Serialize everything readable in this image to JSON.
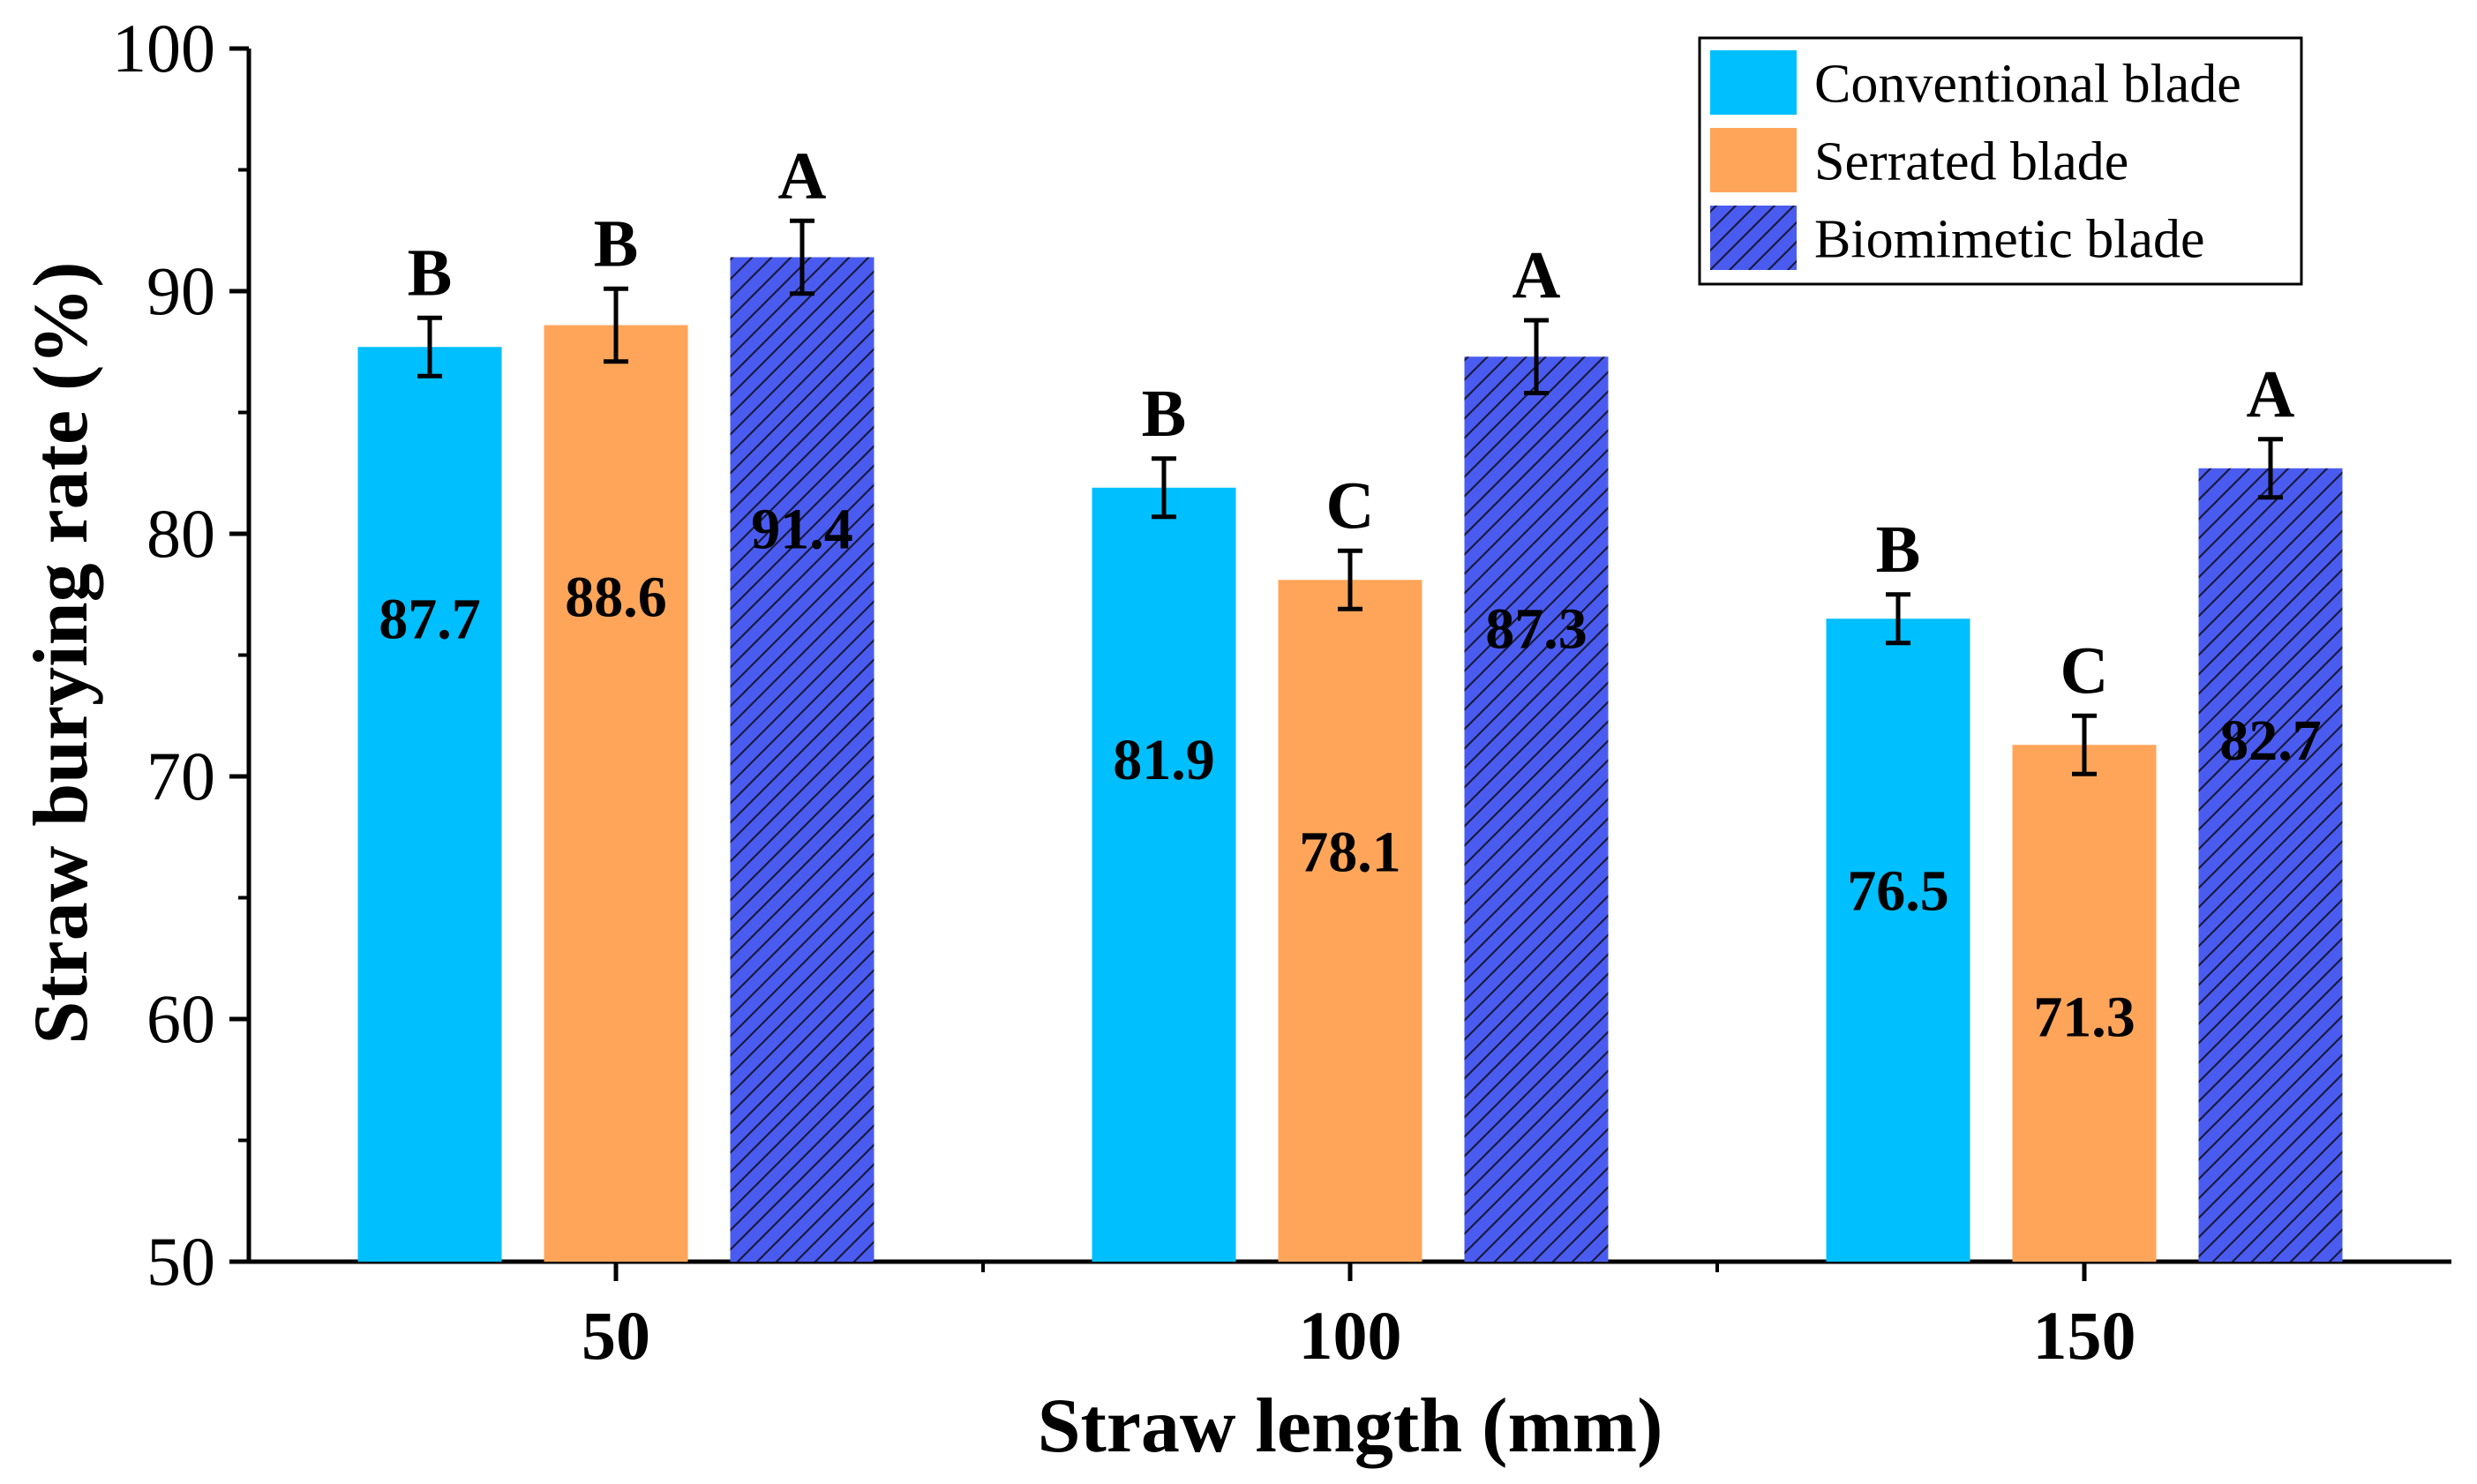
{
  "chart_data": {
    "type": "bar",
    "title": "",
    "xlabel": "Straw length (mm)",
    "ylabel": "Straw burying rate (%)",
    "ylim": [
      50,
      100
    ],
    "yticks": [
      50,
      60,
      70,
      80,
      90,
      100
    ],
    "categories": [
      "50",
      "100",
      "150"
    ],
    "series": [
      {
        "name": "Conventional blade",
        "color": "#00BFFF",
        "pattern": "solid",
        "values": [
          87.7,
          81.9,
          76.5
        ],
        "errors": [
          1.2,
          1.2,
          1.0
        ],
        "value_labels": [
          "87.7",
          "81.9",
          "76.5"
        ],
        "significance": [
          "B",
          "B",
          "B"
        ]
      },
      {
        "name": "Serrated blade",
        "color": "#FFA55A",
        "pattern": "solid",
        "values": [
          88.6,
          78.1,
          71.3
        ],
        "errors": [
          1.5,
          1.2,
          1.2
        ],
        "value_labels": [
          "88.6",
          "78.1",
          "71.3"
        ],
        "significance": [
          "B",
          "C",
          "C"
        ]
      },
      {
        "name": "Biomimetic blade",
        "color": "#4A5CF0",
        "pattern": "hatch",
        "values": [
          91.4,
          87.3,
          82.7
        ],
        "errors": [
          1.5,
          1.5,
          1.2
        ],
        "value_labels": [
          "91.4",
          "87.3",
          "82.7"
        ],
        "significance": [
          "A",
          "A",
          "A"
        ]
      }
    ],
    "legend_position": "top-right",
    "grid": false
  }
}
